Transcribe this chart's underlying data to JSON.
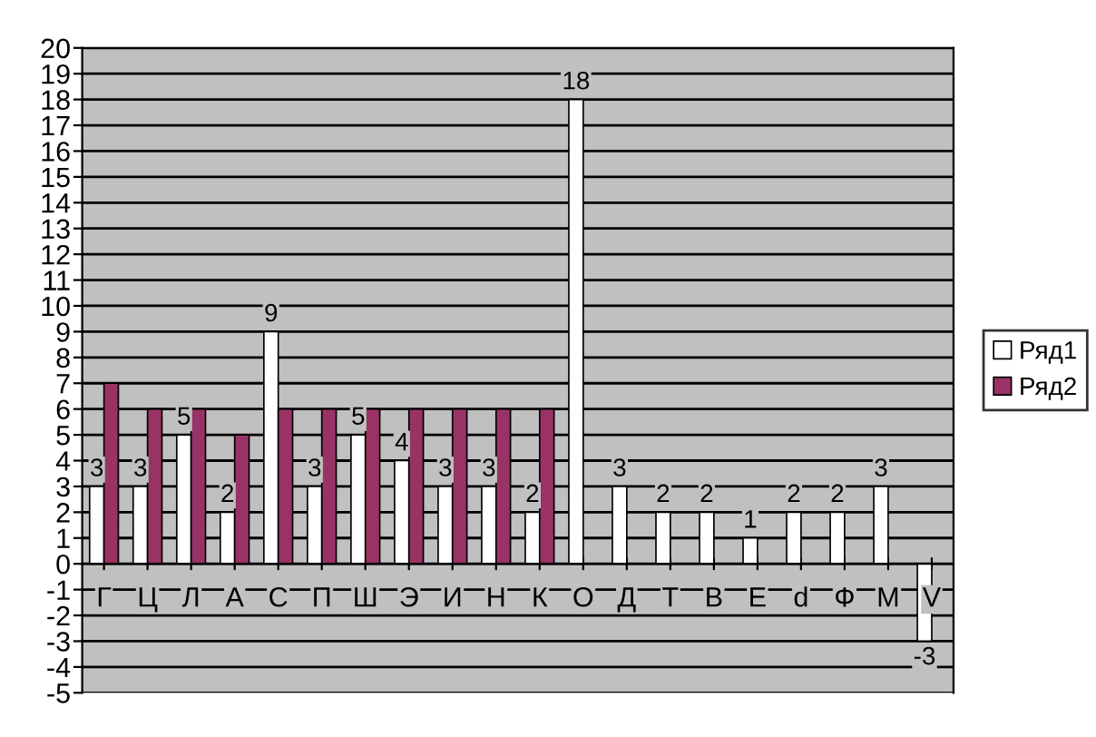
{
  "chart_data": {
    "type": "bar",
    "categories": [
      "Г",
      "Ц",
      "Л",
      "А",
      "С",
      "П",
      "Ш",
      "Э",
      "И",
      "Н",
      "К",
      "О",
      "Д",
      "Т",
      "В",
      "Е",
      "d",
      "Ф",
      "М",
      "V"
    ],
    "series": [
      {
        "name": "Ряд1",
        "color": "#ffffff",
        "values": [
          3,
          3,
          5,
          2,
          9,
          3,
          5,
          4,
          3,
          3,
          2,
          18,
          3,
          2,
          2,
          1,
          2,
          2,
          3,
          -3
        ],
        "value_labels": [
          "3",
          "3",
          "5",
          "2",
          "9",
          "3",
          "5",
          "4",
          "3",
          "3",
          "2",
          "18",
          "3",
          "2",
          "2",
          "1",
          "2",
          "2",
          "3",
          "-3"
        ]
      },
      {
        "name": "Ряд2",
        "color": "#993366",
        "values": [
          7,
          6,
          6,
          5,
          6,
          6,
          6,
          6,
          6,
          6,
          6,
          null,
          null,
          null,
          null,
          null,
          null,
          null,
          null,
          null
        ]
      }
    ],
    "ylim": [
      -5,
      20
    ],
    "yticks": [
      -5,
      -4,
      -3,
      -2,
      -1,
      0,
      1,
      2,
      3,
      4,
      5,
      6,
      7,
      8,
      9,
      10,
      11,
      12,
      13,
      14,
      15,
      16,
      17,
      18,
      19,
      20
    ],
    "grid": "y",
    "legend": "right"
  }
}
